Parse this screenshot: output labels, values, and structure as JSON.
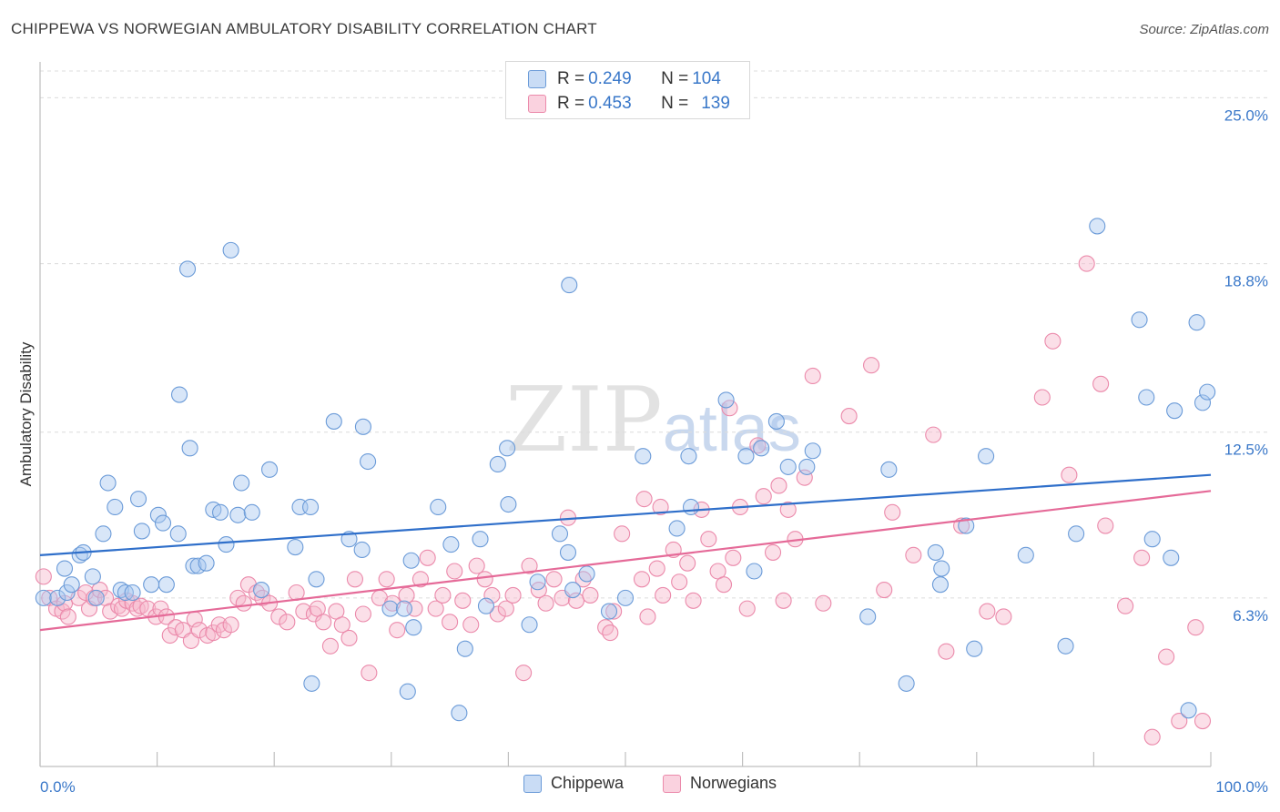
{
  "header": {
    "title": "CHIPPEWA VS NORWEGIAN AMBULATORY DISABILITY CORRELATION CHART",
    "source": "Source: ZipAtlas.com"
  },
  "watermark": {
    "zip": "ZIP",
    "atlas": "atlas"
  },
  "stats_legend": {
    "rows": [
      {
        "r_label": "R = ",
        "r_value": "0.249",
        "n_label": "N = ",
        "n_value": "104",
        "color": "#a9c8f0"
      },
      {
        "r_label": "R = ",
        "r_value": "0.453",
        "n_label": "N = ",
        "n_value": "139",
        "color": "#f7b8cc"
      }
    ]
  },
  "bottom_legend": [
    {
      "label": "Chippewa",
      "color": "#a9c8f0"
    },
    {
      "label": "Norwegians",
      "color": "#f7b8cc"
    }
  ],
  "colors": {
    "chippewa_fill": "#a9c8f0",
    "chippewa_stroke": "#6b9bd8",
    "chippewa_line": "#2f6fca",
    "norwegian_fill": "#f7b8cc",
    "norwegian_stroke": "#eb8aab",
    "norwegian_line": "#e56a98",
    "tick_label": "#3a78c9",
    "grid": "#dcdcdc"
  },
  "chart_data": {
    "type": "scatter",
    "title": "CHIPPEWA VS NORWEGIAN AMBULATORY DISABILITY CORRELATION CHART",
    "xlabel": "",
    "ylabel": "Ambulatory Disability",
    "xlim": [
      0,
      100
    ],
    "ylim": [
      0,
      26
    ],
    "x_tick_labels": [
      "0.0%",
      "100.0%"
    ],
    "y_ticks": [
      6.3,
      12.5,
      18.8,
      25.0
    ],
    "y_tick_labels": [
      "6.3%",
      "12.5%",
      "18.8%",
      "25.0%"
    ],
    "grid": true,
    "legend_position": "bottom-center",
    "series": [
      {
        "name": "Chippewa",
        "trend": [
          [
            0,
            7.9
          ],
          [
            100,
            10.9
          ]
        ],
        "points": [
          [
            0.3,
            6.3
          ],
          [
            1.5,
            6.3
          ],
          [
            2.1,
            7.4
          ],
          [
            2.3,
            6.5
          ],
          [
            2.7,
            6.8
          ],
          [
            3.4,
            7.9
          ],
          [
            3.7,
            8.0
          ],
          [
            4.5,
            7.1
          ],
          [
            4.8,
            6.3
          ],
          [
            5.4,
            8.7
          ],
          [
            5.8,
            10.6
          ],
          [
            6.4,
            9.7
          ],
          [
            6.9,
            6.6
          ],
          [
            7.3,
            6.5
          ],
          [
            7.9,
            6.5
          ],
          [
            8.4,
            10.0
          ],
          [
            8.7,
            8.8
          ],
          [
            9.5,
            6.8
          ],
          [
            10.1,
            9.4
          ],
          [
            10.5,
            9.1
          ],
          [
            10.8,
            6.8
          ],
          [
            11.8,
            8.7
          ],
          [
            11.9,
            13.9
          ],
          [
            12.6,
            18.6
          ],
          [
            12.8,
            11.9
          ],
          [
            13.1,
            7.5
          ],
          [
            13.5,
            7.5
          ],
          [
            14.2,
            7.6
          ],
          [
            14.8,
            9.6
          ],
          [
            15.4,
            9.5
          ],
          [
            15.9,
            8.3
          ],
          [
            16.3,
            19.3
          ],
          [
            16.9,
            9.4
          ],
          [
            17.2,
            10.6
          ],
          [
            18.1,
            9.5
          ],
          [
            18.9,
            6.6
          ],
          [
            19.6,
            11.1
          ],
          [
            21.8,
            8.2
          ],
          [
            22.2,
            9.7
          ],
          [
            23.1,
            9.7
          ],
          [
            23.6,
            7.0
          ],
          [
            23.2,
            3.1
          ],
          [
            25.1,
            12.9
          ],
          [
            26.4,
            8.5
          ],
          [
            27.6,
            12.7
          ],
          [
            27.5,
            8.1
          ],
          [
            28.0,
            11.4
          ],
          [
            29.9,
            5.9
          ],
          [
            31.1,
            5.9
          ],
          [
            31.7,
            7.7
          ],
          [
            31.9,
            5.2
          ],
          [
            31.4,
            2.8
          ],
          [
            34.0,
            9.7
          ],
          [
            35.1,
            8.3
          ],
          [
            35.8,
            2.0
          ],
          [
            36.3,
            4.4
          ],
          [
            37.6,
            8.5
          ],
          [
            38.1,
            6.0
          ],
          [
            39.1,
            11.3
          ],
          [
            40.0,
            9.8
          ],
          [
            45.2,
            18.0
          ],
          [
            39.9,
            11.9
          ],
          [
            41.8,
            5.3
          ],
          [
            42.5,
            6.9
          ],
          [
            44.4,
            8.7
          ],
          [
            45.1,
            8.0
          ],
          [
            45.5,
            6.6
          ],
          [
            46.7,
            7.2
          ],
          [
            48.6,
            5.8
          ],
          [
            50.0,
            6.3
          ],
          [
            51.5,
            11.6
          ],
          [
            55.4,
            11.6
          ],
          [
            55.6,
            9.7
          ],
          [
            58.6,
            13.7
          ],
          [
            60.3,
            11.6
          ],
          [
            61.6,
            11.9
          ],
          [
            62.9,
            12.9
          ],
          [
            63.9,
            11.2
          ],
          [
            65.5,
            11.2
          ],
          [
            66.0,
            11.8
          ],
          [
            70.7,
            5.6
          ],
          [
            72.5,
            11.1
          ],
          [
            74.0,
            3.1
          ],
          [
            76.5,
            8.0
          ],
          [
            76.9,
            6.8
          ],
          [
            77.0,
            7.4
          ],
          [
            79.1,
            9.0
          ],
          [
            79.8,
            4.4
          ],
          [
            80.8,
            11.6
          ],
          [
            84.2,
            7.9
          ],
          [
            87.6,
            4.5
          ],
          [
            88.5,
            8.7
          ],
          [
            90.3,
            20.2
          ],
          [
            93.9,
            16.7
          ],
          [
            94.5,
            13.8
          ],
          [
            95.0,
            8.5
          ],
          [
            96.6,
            7.8
          ],
          [
            96.9,
            13.3
          ],
          [
            98.1,
            2.1
          ],
          [
            98.8,
            16.6
          ],
          [
            99.3,
            13.6
          ],
          [
            99.7,
            14.0
          ],
          [
            54.4,
            8.9
          ],
          [
            61.0,
            7.3
          ]
        ]
      },
      {
        "name": "Norwegians",
        "trend": [
          [
            0,
            5.1
          ],
          [
            100,
            10.3
          ]
        ],
        "points": [
          [
            0.3,
            7.1
          ],
          [
            0.8,
            6.3
          ],
          [
            1.4,
            5.9
          ],
          [
            1.9,
            5.8
          ],
          [
            2.1,
            6.1
          ],
          [
            2.4,
            5.6
          ],
          [
            3.3,
            6.3
          ],
          [
            3.9,
            6.5
          ],
          [
            4.2,
            5.9
          ],
          [
            4.6,
            6.3
          ],
          [
            5.1,
            6.6
          ],
          [
            5.6,
            6.3
          ],
          [
            6.0,
            5.8
          ],
          [
            6.7,
            6.0
          ],
          [
            7.0,
            5.9
          ],
          [
            7.4,
            6.2
          ],
          [
            7.9,
            6.1
          ],
          [
            8.3,
            5.9
          ],
          [
            8.6,
            6.0
          ],
          [
            9.2,
            5.9
          ],
          [
            9.9,
            5.6
          ],
          [
            10.3,
            5.9
          ],
          [
            10.8,
            5.6
          ],
          [
            11.1,
            4.9
          ],
          [
            11.6,
            5.2
          ],
          [
            12.2,
            5.1
          ],
          [
            12.9,
            4.7
          ],
          [
            13.2,
            5.5
          ],
          [
            13.6,
            5.1
          ],
          [
            14.3,
            4.9
          ],
          [
            14.8,
            5.0
          ],
          [
            15.3,
            5.3
          ],
          [
            15.7,
            5.1
          ],
          [
            16.3,
            5.3
          ],
          [
            16.9,
            6.3
          ],
          [
            17.4,
            6.1
          ],
          [
            17.8,
            6.8
          ],
          [
            18.5,
            6.5
          ],
          [
            19.0,
            6.3
          ],
          [
            19.6,
            6.1
          ],
          [
            20.4,
            5.6
          ],
          [
            21.1,
            5.4
          ],
          [
            21.9,
            6.5
          ],
          [
            22.5,
            5.8
          ],
          [
            23.4,
            5.7
          ],
          [
            23.7,
            5.9
          ],
          [
            24.2,
            5.4
          ],
          [
            24.8,
            4.5
          ],
          [
            25.3,
            5.8
          ],
          [
            25.8,
            5.3
          ],
          [
            26.4,
            4.8
          ],
          [
            26.9,
            7.0
          ],
          [
            27.6,
            5.7
          ],
          [
            28.1,
            3.5
          ],
          [
            29.0,
            6.3
          ],
          [
            29.6,
            7.0
          ],
          [
            30.1,
            6.1
          ],
          [
            30.5,
            5.1
          ],
          [
            31.3,
            6.4
          ],
          [
            32.0,
            5.9
          ],
          [
            32.5,
            7.0
          ],
          [
            33.1,
            7.8
          ],
          [
            33.8,
            5.9
          ],
          [
            34.4,
            6.4
          ],
          [
            35.0,
            5.4
          ],
          [
            35.4,
            7.3
          ],
          [
            36.1,
            6.2
          ],
          [
            36.8,
            5.3
          ],
          [
            37.3,
            7.5
          ],
          [
            38.0,
            7.0
          ],
          [
            38.6,
            6.4
          ],
          [
            39.1,
            5.7
          ],
          [
            39.8,
            5.9
          ],
          [
            40.4,
            6.4
          ],
          [
            41.3,
            3.5
          ],
          [
            41.8,
            7.5
          ],
          [
            42.6,
            6.6
          ],
          [
            43.2,
            6.1
          ],
          [
            43.9,
            7.0
          ],
          [
            44.6,
            6.3
          ],
          [
            45.1,
            9.3
          ],
          [
            45.8,
            6.2
          ],
          [
            46.4,
            7.0
          ],
          [
            47.0,
            6.4
          ],
          [
            48.3,
            5.2
          ],
          [
            49.0,
            5.8
          ],
          [
            49.7,
            8.7
          ],
          [
            51.4,
            7.0
          ],
          [
            51.9,
            5.6
          ],
          [
            52.7,
            7.4
          ],
          [
            53.2,
            6.4
          ],
          [
            54.1,
            8.1
          ],
          [
            54.6,
            6.9
          ],
          [
            55.8,
            6.2
          ],
          [
            56.5,
            9.6
          ],
          [
            57.1,
            8.5
          ],
          [
            57.9,
            7.3
          ],
          [
            58.4,
            6.8
          ],
          [
            59.2,
            7.8
          ],
          [
            59.8,
            9.7
          ],
          [
            60.4,
            5.9
          ],
          [
            61.3,
            12.0
          ],
          [
            61.8,
            10.1
          ],
          [
            62.6,
            8.0
          ],
          [
            63.5,
            6.2
          ],
          [
            63.9,
            9.6
          ],
          [
            64.5,
            8.5
          ],
          [
            65.3,
            10.8
          ],
          [
            66.0,
            14.6
          ],
          [
            66.9,
            6.1
          ],
          [
            69.1,
            13.1
          ],
          [
            71.0,
            15.0
          ],
          [
            72.1,
            6.6
          ],
          [
            72.8,
            9.5
          ],
          [
            74.6,
            7.9
          ],
          [
            76.3,
            12.4
          ],
          [
            77.4,
            4.3
          ],
          [
            78.7,
            9.0
          ],
          [
            80.9,
            5.8
          ],
          [
            82.3,
            5.6
          ],
          [
            85.6,
            13.8
          ],
          [
            86.5,
            15.9
          ],
          [
            87.9,
            10.9
          ],
          [
            89.4,
            18.8
          ],
          [
            90.6,
            14.3
          ],
          [
            91.0,
            9.0
          ],
          [
            92.7,
            6.0
          ],
          [
            94.1,
            7.8
          ],
          [
            95.0,
            1.1
          ],
          [
            96.2,
            4.1
          ],
          [
            97.3,
            1.7
          ],
          [
            98.7,
            5.2
          ],
          [
            99.3,
            1.7
          ],
          [
            58.9,
            13.4
          ],
          [
            63.1,
            10.5
          ],
          [
            51.6,
            10.0
          ],
          [
            53.0,
            9.7
          ],
          [
            48.7,
            5.0
          ],
          [
            55.3,
            7.6
          ]
        ]
      }
    ]
  }
}
